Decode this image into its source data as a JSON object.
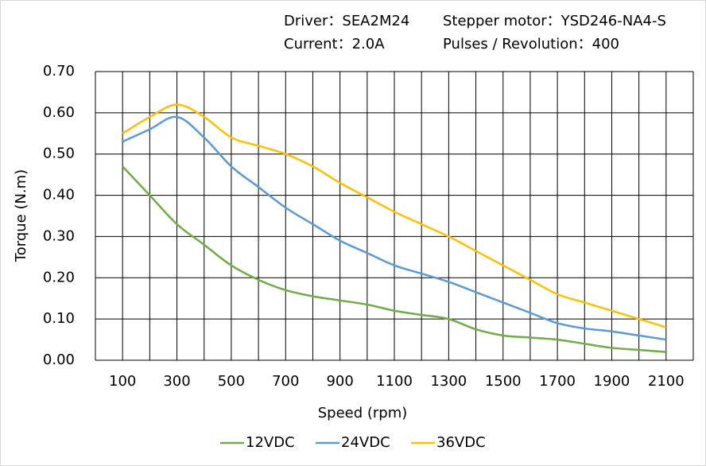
{
  "chart_data": {
    "type": "line",
    "info": [
      "Driver：SEA2M24",
      "Stepper motor：YSD246-NA4-S",
      "Current：2.0A",
      "Pulses / Revolution：400"
    ],
    "xlabel": "Speed  (rpm)",
    "ylabel": "Torque (N.m)",
    "x": [
      100,
      200,
      300,
      400,
      500,
      600,
      700,
      800,
      900,
      1000,
      1100,
      1200,
      1300,
      1400,
      1500,
      1600,
      1700,
      1800,
      1900,
      2000,
      2100
    ],
    "series": [
      {
        "name": "12VDC",
        "color": "#70ad47",
        "values": [
          0.47,
          0.4,
          0.33,
          0.28,
          0.23,
          0.195,
          0.17,
          0.155,
          0.145,
          0.135,
          0.12,
          0.11,
          0.1,
          0.075,
          0.06,
          0.055,
          0.05,
          0.04,
          0.03,
          0.025,
          0.02
        ]
      },
      {
        "name": "24VDC",
        "color": "#5b9bd5",
        "values": [
          0.53,
          0.56,
          0.59,
          0.54,
          0.47,
          0.42,
          0.37,
          0.33,
          0.29,
          0.26,
          0.23,
          0.21,
          0.19,
          0.165,
          0.14,
          0.115,
          0.09,
          0.077,
          0.07,
          0.06,
          0.05
        ]
      },
      {
        "name": "36VDC",
        "color": "#ffc000",
        "values": [
          0.55,
          0.59,
          0.62,
          0.59,
          0.54,
          0.52,
          0.5,
          0.47,
          0.43,
          0.395,
          0.36,
          0.33,
          0.3,
          0.265,
          0.23,
          0.195,
          0.16,
          0.14,
          0.12,
          0.1,
          0.08
        ]
      }
    ],
    "xlim": [
      0,
      2200
    ],
    "xticks": [
      100,
      300,
      500,
      700,
      900,
      1100,
      1300,
      1500,
      1700,
      1900,
      2100
    ],
    "xminorticks": [
      0,
      200,
      400,
      600,
      800,
      1000,
      1200,
      1400,
      1600,
      1800,
      2000,
      2200
    ],
    "ylim": [
      0,
      0.7
    ],
    "yticks": [
      {
        "value": 0,
        "label": "0.00"
      },
      {
        "value": 0.1,
        "label": "0.10"
      },
      {
        "value": 0.2,
        "label": "0.20"
      },
      {
        "value": 0.3,
        "label": "0.30"
      },
      {
        "value": 0.4,
        "label": "0.40"
      },
      {
        "value": 0.5,
        "label": "0.50"
      },
      {
        "value": 0.6,
        "label": "0.60"
      },
      {
        "value": 0.7,
        "label": "0.70"
      }
    ],
    "grid": true,
    "legend": "bottom"
  }
}
